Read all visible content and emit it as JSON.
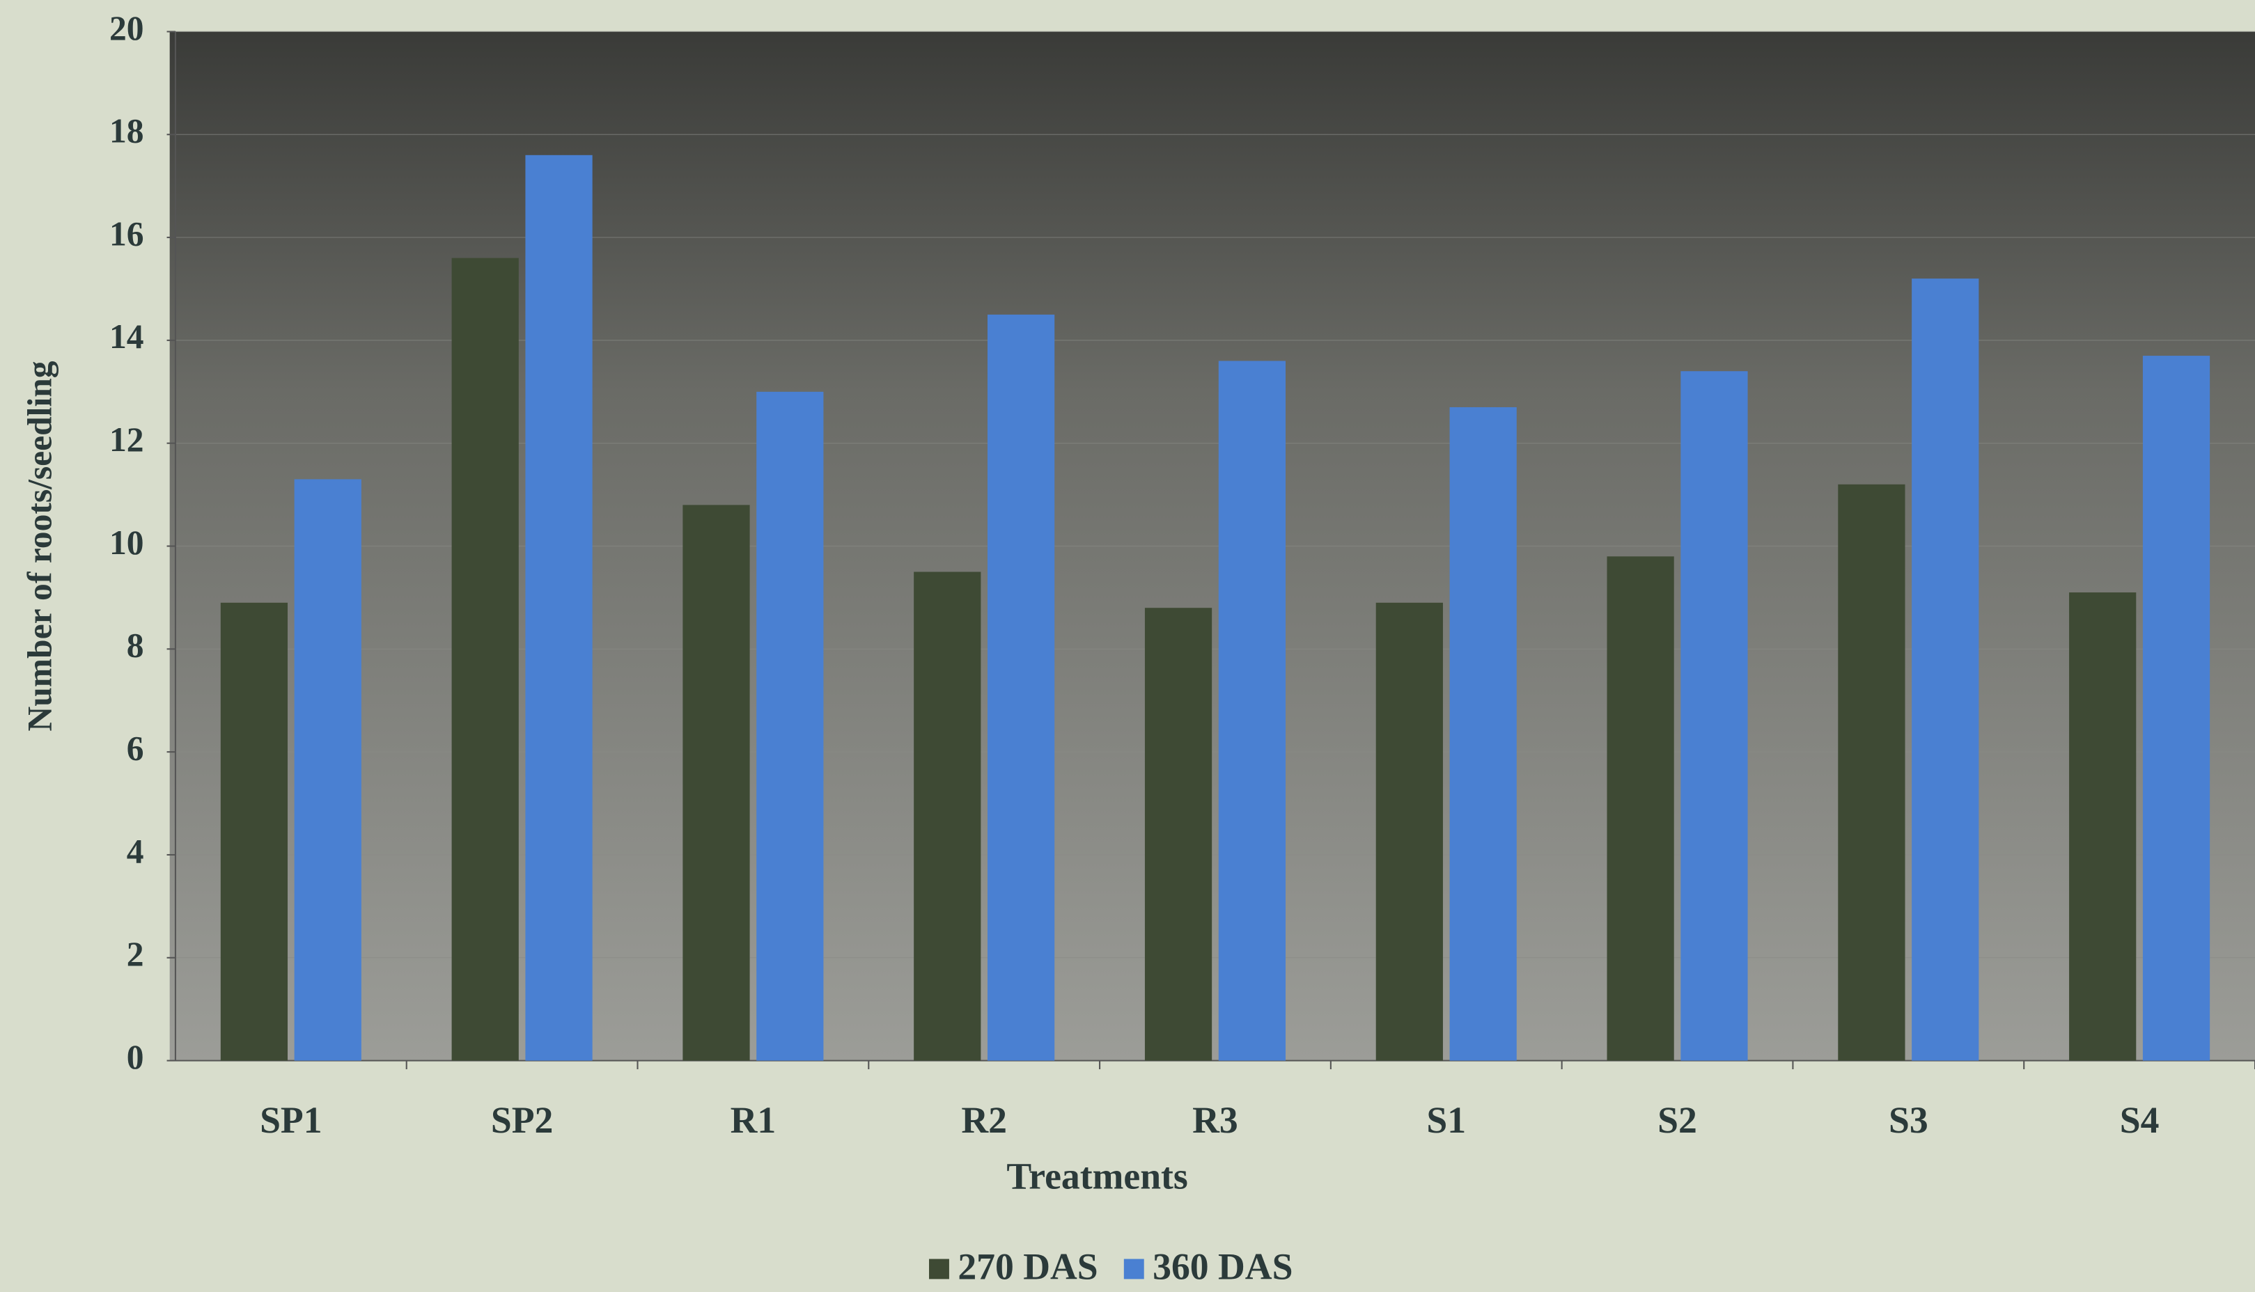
{
  "chart_data": {
    "type": "bar",
    "x_label": "Treatments",
    "y_label": "Number of roots/seedling",
    "categories": [
      "SP1",
      "SP2",
      "R1",
      "R2",
      "R3",
      "S1",
      "S2",
      "S3",
      "S4"
    ],
    "series": [
      {
        "name": "270 DAS",
        "color": "#3e4a34",
        "values": [
          8.9,
          15.6,
          10.8,
          9.5,
          8.8,
          8.9,
          9.8,
          11.2,
          9.1
        ]
      },
      {
        "name": "360 DAS",
        "color": "#4a80d2",
        "values": [
          11.3,
          17.6,
          13.0,
          14.5,
          13.6,
          12.7,
          13.4,
          15.2,
          13.7
        ]
      }
    ],
    "ylim": [
      0,
      20
    ],
    "yticks": [
      0,
      2,
      4,
      6,
      8,
      10,
      12,
      14,
      16,
      18,
      20
    ],
    "legend": "bottom"
  }
}
